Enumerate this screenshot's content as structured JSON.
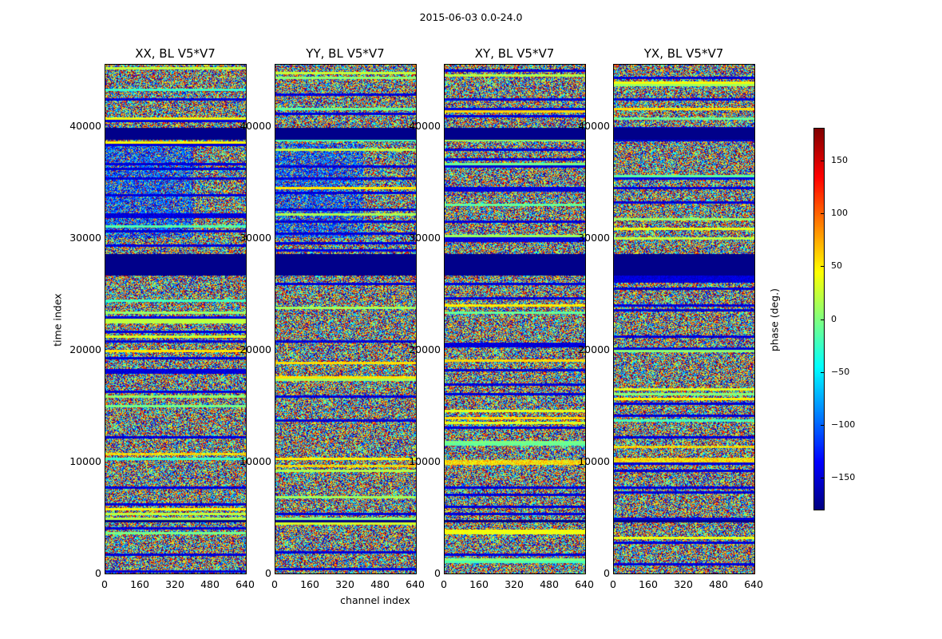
{
  "chart_data": {
    "type": "heatmap",
    "suptitle": "2015-06-03 0.0-24.0",
    "panels": [
      {
        "title": "XX, BL V5*V7"
      },
      {
        "title": "YY, BL V5*V7"
      },
      {
        "title": "XY, BL V5*V7"
      },
      {
        "title": "YX, BL V5*V7"
      }
    ],
    "xlabel": "channel index",
    "ylabel": "time index",
    "xlim": [
      0,
      640
    ],
    "ylim": [
      0,
      45500
    ],
    "xticks": [
      "0",
      "160",
      "320",
      "480",
      "640"
    ],
    "yticks": [
      {
        "value": 0,
        "label": "0"
      },
      {
        "value": 10000,
        "label": "10000"
      },
      {
        "value": 20000,
        "label": "20000"
      },
      {
        "value": 30000,
        "label": "30000"
      },
      {
        "value": 40000,
        "label": "40000"
      }
    ],
    "colorbar": {
      "label": "phase (deg.)",
      "range": [
        -180,
        180
      ],
      "ticks": [
        {
          "value": -150,
          "label": "−150"
        },
        {
          "value": -100,
          "label": "−100"
        },
        {
          "value": -50,
          "label": "−50"
        },
        {
          "value": 0,
          "label": "0"
        },
        {
          "value": 50,
          "label": "50"
        },
        {
          "value": 100,
          "label": "100"
        },
        {
          "value": 150,
          "label": "150"
        }
      ],
      "colormap": "jet"
    },
    "flagged_time_ranges": [
      [
        26700,
        28600
      ],
      [
        38800,
        39900
      ],
      [
        4600,
        4800
      ]
    ]
  }
}
